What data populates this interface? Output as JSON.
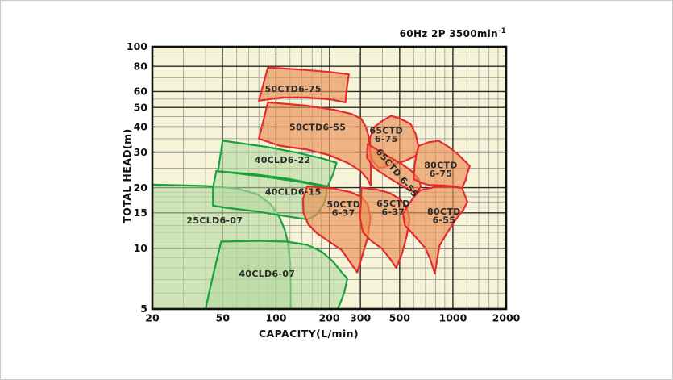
{
  "header": {
    "title_main": "60Hz 2P 3500min",
    "title_sup": "-1"
  },
  "chart_data": {
    "type": "area",
    "subtype": "pump-operating-range-map",
    "title": "60Hz 2P 3500min-1",
    "xlabel": "CAPACITY(L/min)",
    "ylabel": "TOTAL HEAD(m)",
    "x_scale": "log",
    "y_scale": "log",
    "xlim": [
      20,
      2000
    ],
    "ylim": [
      5,
      100
    ],
    "x_ticks": [
      20,
      50,
      100,
      200,
      300,
      500,
      1000,
      2000
    ],
    "x_tick_labels": [
      "20",
      "50",
      "100",
      "200",
      "300",
      "500",
      "1000",
      "2000"
    ],
    "y_ticks": [
      100,
      80,
      60,
      50,
      40,
      30,
      20,
      15,
      10,
      5
    ],
    "y_tick_labels": [
      "100",
      "80",
      "60",
      "50",
      "40",
      "30",
      "20",
      "15",
      "10",
      "5"
    ],
    "grid": {
      "x_minor": [
        30,
        40,
        60,
        70,
        80,
        90,
        120,
        140,
        160,
        180,
        400,
        600,
        700,
        800,
        900,
        1200,
        1400,
        1600,
        1800
      ],
      "x_mid": [
        50,
        200
      ],
      "x_major": [
        100,
        300,
        500,
        1000
      ],
      "y_minor": [
        6,
        7,
        8,
        9,
        11,
        12,
        13,
        14,
        16,
        17,
        18,
        19,
        25,
        35,
        45,
        55,
        70,
        90
      ],
      "y_major": [
        10,
        15,
        20,
        30,
        40,
        50,
        60,
        80
      ]
    },
    "colors": {
      "plot_bg": "#f6f3d8",
      "grid_minor": "#8f8f8f",
      "grid_mid": "#555555",
      "grid_major": "#2a2a2a",
      "border": "#111111",
      "green_fill": "#b4d8a0",
      "green_stroke": "#17a33c",
      "red_fill": "#eb9055",
      "red_stroke": "#e52b2b",
      "label_color": "#2b2b2b",
      "tick_color": "#111111"
    },
    "regions": [
      {
        "name": "25CLD6-07",
        "series": "CLD",
        "points": [
          [
            20,
            20.7
          ],
          [
            40,
            20.4
          ],
          [
            60,
            19.8
          ],
          [
            78,
            18.6
          ],
          [
            93,
            16.6
          ],
          [
            104,
            14.4
          ],
          [
            112,
            12.4
          ],
          [
            117,
            10.6
          ],
          [
            120,
            8.6
          ],
          [
            121,
            6.5
          ],
          [
            121,
            5
          ],
          [
            20,
            5
          ]
        ],
        "label": {
          "text": [
            "25CLD6-07"
          ],
          "q": 45,
          "h": 13.8,
          "rotate": 0
        }
      },
      {
        "name": "40CLD6-07",
        "series": "CLD",
        "points": [
          [
            42,
            6.1
          ],
          [
            46,
            8.6
          ],
          [
            49,
            10.8
          ],
          [
            80,
            10.9
          ],
          [
            115,
            10.8
          ],
          [
            150,
            10.4
          ],
          [
            182,
            9.6
          ],
          [
            210,
            8.6
          ],
          [
            238,
            7.5
          ],
          [
            253,
            7.1
          ],
          [
            244,
            6.1
          ],
          [
            232,
            5.4
          ],
          [
            223,
            5
          ],
          [
            40,
            5
          ]
        ],
        "label": {
          "text": [
            "40CLD6-07"
          ],
          "q": 89,
          "h": 7.5,
          "rotate": 0
        }
      },
      {
        "name": "40CLD6-15",
        "series": "CLD",
        "points": [
          [
            46,
            24.2
          ],
          [
            85,
            22.7
          ],
          [
            130,
            21.5
          ],
          [
            170,
            20.6
          ],
          [
            192,
            20
          ],
          [
            193,
            18.6
          ],
          [
            186,
            16.5
          ],
          [
            170,
            14.7
          ],
          [
            152,
            13.9
          ],
          [
            115,
            14.4
          ],
          [
            80,
            15.2
          ],
          [
            52,
            15.9
          ],
          [
            44,
            16.3
          ],
          [
            44,
            20
          ]
        ],
        "label": {
          "text": [
            "40CLD6-15"
          ],
          "q": 125,
          "h": 19.1,
          "rotate": 0
        }
      },
      {
        "name": "40CLD6-22",
        "series": "CLD",
        "points": [
          [
            50,
            34.2
          ],
          [
            88,
            31.9
          ],
          [
            132,
            29.8
          ],
          [
            180,
            28
          ],
          [
            220,
            26.6
          ],
          [
            210,
            23.3
          ],
          [
            196,
            20.3
          ],
          [
            160,
            21
          ],
          [
            115,
            22.2
          ],
          [
            75,
            23.3
          ],
          [
            47,
            24.1
          ]
        ],
        "label": {
          "text": [
            "40CLD6-22"
          ],
          "q": 109,
          "h": 27.5,
          "rotate": 0
        }
      },
      {
        "name": "50CTD6-75",
        "series": "CTD",
        "points": [
          [
            90,
            79
          ],
          [
            140,
            77
          ],
          [
            200,
            75
          ],
          [
            258,
            73
          ],
          [
            251,
            62
          ],
          [
            247,
            53
          ],
          [
            205,
            54.8
          ],
          [
            150,
            56
          ],
          [
            108,
            56
          ],
          [
            80,
            54
          ]
        ],
        "label": {
          "text": [
            "50CTD6-75"
          ],
          "q": 125,
          "h": 62,
          "rotate": 0
        }
      },
      {
        "name": "50CTD6-55",
        "series": "CTD",
        "points": [
          [
            90,
            53
          ],
          [
            150,
            51
          ],
          [
            215,
            48.6
          ],
          [
            268,
            46.4
          ],
          [
            303,
            44
          ],
          [
            322,
            40
          ],
          [
            334,
            36
          ],
          [
            341,
            30
          ],
          [
            344,
            24
          ],
          [
            343,
            20.5
          ],
          [
            330,
            22
          ],
          [
            300,
            24.2
          ],
          [
            255,
            26.5
          ],
          [
            200,
            29
          ],
          [
            150,
            30.9
          ],
          [
            106,
            32.2
          ],
          [
            80,
            35
          ]
        ],
        "label": {
          "text": [
            "50CTD6-55"
          ],
          "q": 172,
          "h": 40,
          "rotate": 0
        }
      },
      {
        "name": "50CTD6-37",
        "series": "CTD",
        "points": [
          [
            150,
            20.3
          ],
          [
            210,
            19.8
          ],
          [
            265,
            19
          ],
          [
            305,
            18
          ],
          [
            330,
            16.5
          ],
          [
            342,
            14.2
          ],
          [
            330,
            11.3
          ],
          [
            305,
            9
          ],
          [
            288,
            7.6
          ],
          [
            268,
            8.3
          ],
          [
            235,
            9.8
          ],
          [
            200,
            10.8
          ],
          [
            170,
            11.9
          ],
          [
            152,
            13.2
          ],
          [
            143,
            15
          ],
          [
            142,
            17.5
          ]
        ],
        "label": {
          "text": [
            "50CTD",
            "6-37"
          ],
          "q": 241,
          "h": 15.7,
          "rotate": 0
        }
      },
      {
        "name": "65CTD6-75",
        "series": "CTD",
        "points": [
          [
            448,
            45.5
          ],
          [
            510,
            43.8
          ],
          [
            575,
            41.5
          ],
          [
            615,
            37
          ],
          [
            640,
            31.7
          ],
          [
            618,
            28.8
          ],
          [
            540,
            27.2
          ],
          [
            460,
            26
          ],
          [
            384,
            25
          ],
          [
            352,
            27
          ],
          [
            340,
            31
          ],
          [
            340,
            35.5
          ],
          [
            360,
            40
          ],
          [
            400,
            43
          ]
        ],
        "label": {
          "text": [
            "65CTD",
            "6-75"
          ],
          "q": 420,
          "h": 36.5,
          "rotate": 0
        }
      },
      {
        "name": "65CTD6-55",
        "series": "CTD",
        "points": [
          [
            330,
            33
          ],
          [
            380,
            30.5
          ],
          [
            440,
            28.3
          ],
          [
            510,
            26.3
          ],
          [
            580,
            24.3
          ],
          [
            640,
            22
          ],
          [
            660,
            20.3
          ],
          [
            620,
            18.8
          ],
          [
            560,
            19.6
          ],
          [
            490,
            21
          ],
          [
            420,
            22.8
          ],
          [
            360,
            25
          ],
          [
            326,
            28.2
          ]
        ],
        "label": {
          "text": [
            "65CTD 6-55"
          ],
          "q": 485,
          "h": 23.7,
          "rotate": 50
        }
      },
      {
        "name": "65CTD6-37",
        "series": "CTD",
        "points": [
          [
            304,
            20
          ],
          [
            370,
            19.6
          ],
          [
            440,
            18.8
          ],
          [
            500,
            17.6
          ],
          [
            545,
            16.2
          ],
          [
            570,
            14
          ],
          [
            548,
            11.5
          ],
          [
            515,
            9.4
          ],
          [
            478,
            8
          ],
          [
            440,
            8.9
          ],
          [
            395,
            10
          ],
          [
            345,
            10.9
          ],
          [
            310,
            12
          ],
          [
            298,
            14.2
          ],
          [
            302,
            17
          ]
        ],
        "label": {
          "text": [
            "65CTD",
            "6-37"
          ],
          "q": 460,
          "h": 15.8,
          "rotate": 0
        }
      },
      {
        "name": "80CTD6-75",
        "series": "CTD",
        "points": [
          [
            640,
            32.2
          ],
          [
            730,
            33.6
          ],
          [
            830,
            34.2
          ],
          [
            950,
            31.8
          ],
          [
            1080,
            29
          ],
          [
            1245,
            25.6
          ],
          [
            1205,
            23.5
          ],
          [
            1180,
            21.8
          ],
          [
            1125,
            19.9
          ],
          [
            1000,
            20.3
          ],
          [
            880,
            20.5
          ],
          [
            733,
            20.6
          ],
          [
            658,
            21.2
          ],
          [
            600,
            22.1
          ],
          [
            608,
            26
          ],
          [
            622,
            29.5
          ]
        ],
        "label": {
          "text": [
            "80CTD",
            "6-75"
          ],
          "q": 855,
          "h": 24.5,
          "rotate": 0
        }
      },
      {
        "name": "80CTD6-55",
        "series": "CTD",
        "points": [
          [
            652,
            19.4
          ],
          [
            800,
            20.2
          ],
          [
            950,
            20.3
          ],
          [
            1125,
            19.9
          ],
          [
            1207,
            17
          ],
          [
            1135,
            15.3
          ],
          [
            1050,
            14.1
          ],
          [
            925,
            11.9
          ],
          [
            840,
            10.3
          ],
          [
            790,
            7.5
          ],
          [
            745,
            8.8
          ],
          [
            700,
            10
          ],
          [
            610,
            11.5
          ],
          [
            535,
            13
          ],
          [
            523,
            14.8
          ],
          [
            560,
            16.5
          ],
          [
            610,
            18.2
          ]
        ],
        "label": {
          "text": [
            "80CTD",
            "6-55"
          ],
          "q": 890,
          "h": 14.4,
          "rotate": 0
        }
      }
    ]
  }
}
